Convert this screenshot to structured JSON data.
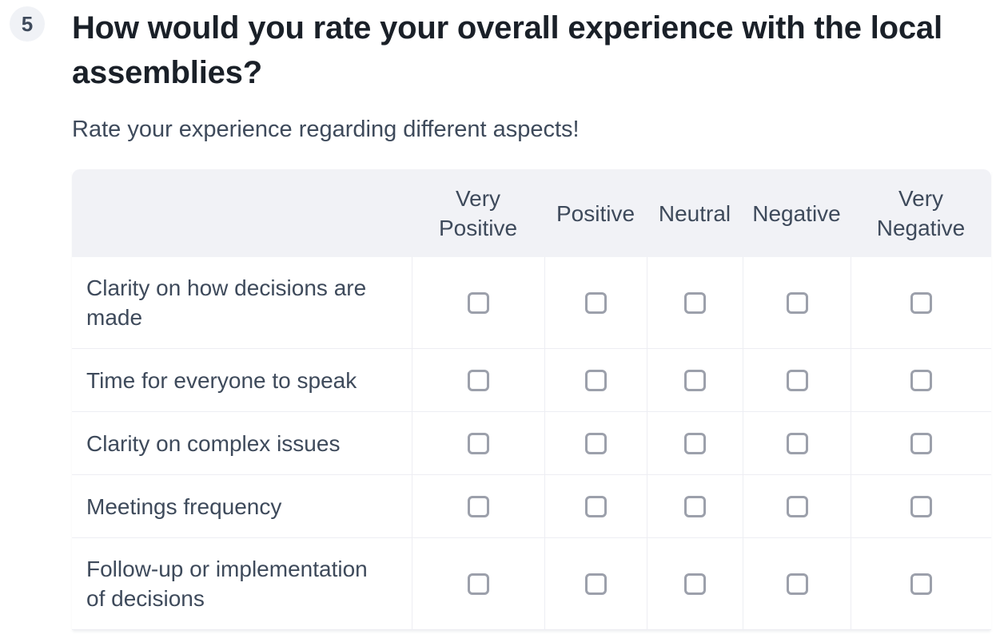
{
  "question": {
    "number": "5",
    "title": "How would you rate your overall experience with the local assemblies?",
    "subtitle": "Rate your experience regarding different aspects!"
  },
  "matrix": {
    "columns": [
      "Very Positive",
      "Positive",
      "Neutral",
      "Negative",
      "Very Negative"
    ],
    "rows": [
      "Clarity on how decisions are made",
      "Time for everyone to speak",
      "Clarity on complex issues",
      "Meetings frequency",
      "Follow-up or implementation of decisions"
    ],
    "cell_state": "all-unchecked"
  },
  "colors": {
    "header_bg": "#F1F2F6",
    "badge_bg": "#F0F2F6",
    "body_text": "#3E4A5B",
    "title_text": "#1A2028",
    "grid_border": "#EDEEF3",
    "checkbox_border": "#9CA0AB"
  }
}
